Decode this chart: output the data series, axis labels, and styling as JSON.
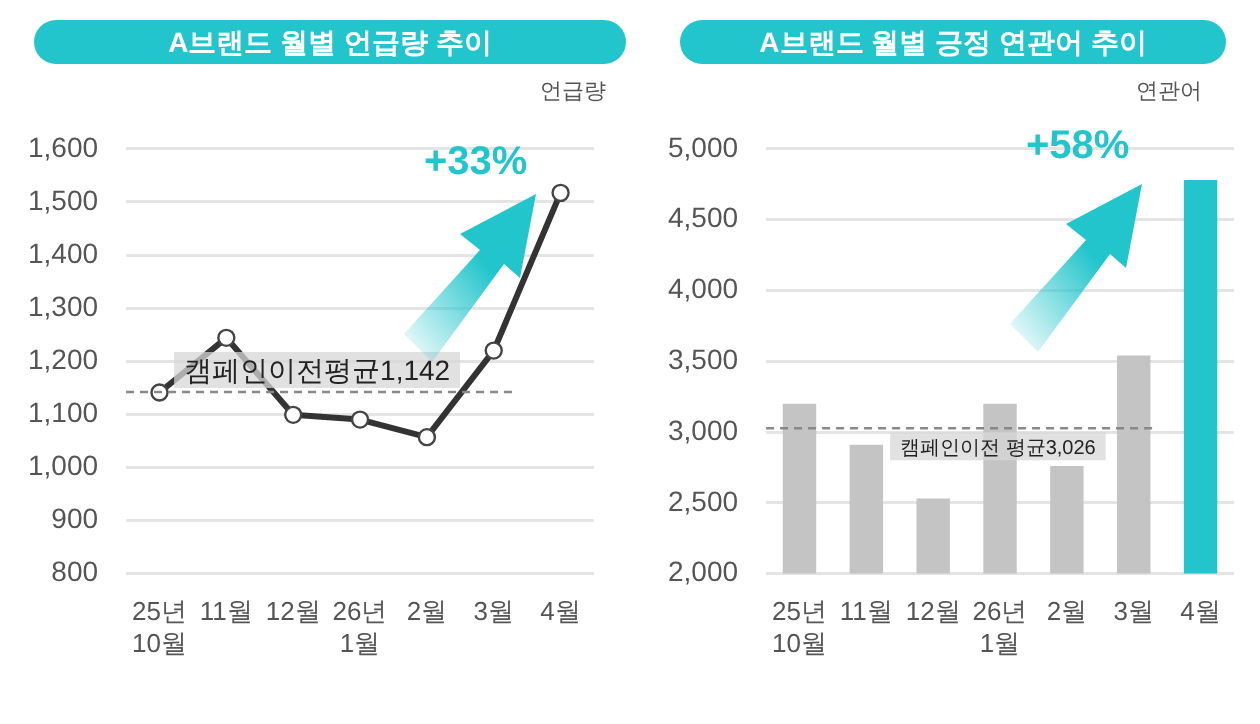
{
  "chart_data": [
    {
      "type": "line",
      "title": "A브랜드 월별 언급량 추이",
      "ylabel": "언급량",
      "categories": [
        "25년\n10월",
        "11월",
        "12월",
        "26년\n1월",
        "2월",
        "3월",
        "4월"
      ],
      "series": [
        {
          "color": "#333333",
          "values": [
            1141,
            1244,
            1099,
            1090,
            1057,
            1220,
            1517
          ]
        }
      ],
      "marker": "circle",
      "ylim": [
        800,
        1600
      ],
      "yticks": [
        {
          "value": 800,
          "label": "800"
        },
        {
          "value": 900,
          "label": "900"
        },
        {
          "value": 1000,
          "label": "1,000"
        },
        {
          "value": 1100,
          "label": "1,100"
        },
        {
          "value": 1200,
          "label": "1,200"
        },
        {
          "value": 1300,
          "label": "1,300"
        },
        {
          "value": 1400,
          "label": "1,400"
        },
        {
          "value": 1500,
          "label": "1,500"
        },
        {
          "value": 1600,
          "label": "1,600"
        }
      ],
      "grid": "y",
      "ref_lines": [
        {
          "axis": "y",
          "value": 1142,
          "label": "캠페인이전평균1,142",
          "color": "#888888",
          "line_style": "dashed"
        }
      ],
      "annotations": [
        "+33%"
      ]
    },
    {
      "type": "bar",
      "title": "A브랜드 월별 긍정 연관어 추이",
      "ylabel": "연관어",
      "categories": [
        "25년\n10월",
        "11월",
        "12월",
        "26년\n1월",
        "2월",
        "3월",
        "4월"
      ],
      "values": [
        3200,
        2910,
        2530,
        3200,
        2760,
        3540,
        4780
      ],
      "colors": [
        "#c4c4c4",
        "#c4c4c4",
        "#c4c4c4",
        "#c4c4c4",
        "#c4c4c4",
        "#c4c4c4",
        "#22c5cc"
      ],
      "ylim": [
        2000,
        5000
      ],
      "yticks": [
        {
          "value": 2000,
          "label": "2,000"
        },
        {
          "value": 2500,
          "label": "2,500"
        },
        {
          "value": 3000,
          "label": "3,000"
        },
        {
          "value": 3500,
          "label": "3,500"
        },
        {
          "value": 4000,
          "label": "4,000"
        },
        {
          "value": 4500,
          "label": "4,500"
        },
        {
          "value": 5000,
          "label": "5,000"
        }
      ],
      "grid": "y",
      "ref_lines": [
        {
          "axis": "y",
          "value": 3026,
          "label": "캠페인이전 평균3,026",
          "color": "#888888",
          "line_style": "dashed"
        }
      ],
      "annotations": [
        "+58%"
      ]
    }
  ]
}
